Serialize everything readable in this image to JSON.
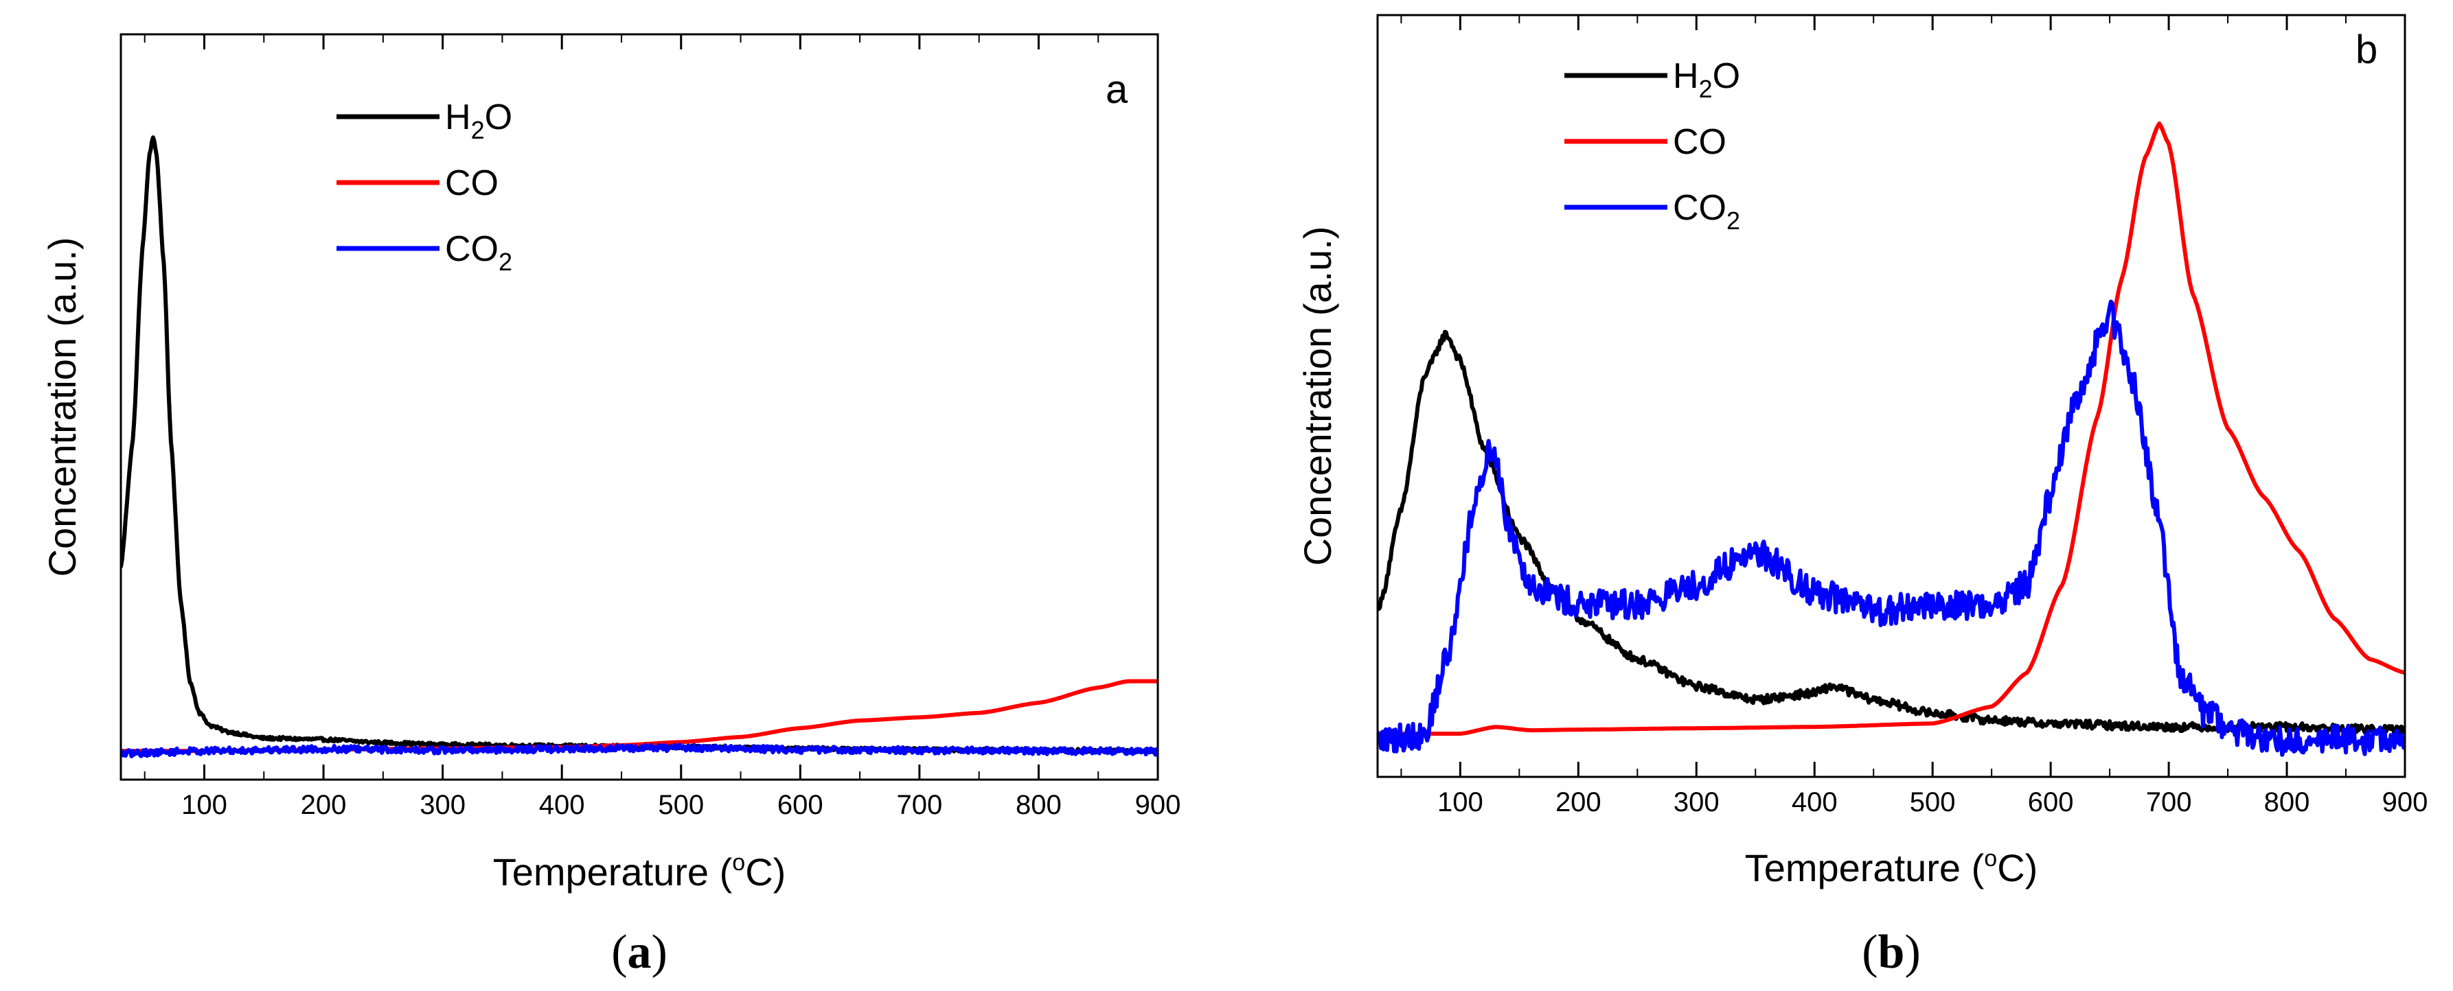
{
  "chart_data": [
    {
      "panel": "a",
      "type": "line",
      "caption_open": "(",
      "caption_letter": "a",
      "caption_close": ")",
      "xlabel_prefix": "Temperature (",
      "xlabel_degree": "o",
      "xlabel_suffix": "C)",
      "ylabel": "Concentration (a.u.)",
      "xlim": [
        30,
        900
      ],
      "ylim": [
        0,
        100
      ],
      "xticks": [
        100,
        200,
        300,
        400,
        500,
        600,
        700,
        800,
        900
      ],
      "xtick_labels": [
        "100",
        "200",
        "300",
        "400",
        "500",
        "600",
        "700",
        "800",
        "900"
      ],
      "legend": [
        {
          "base": "H",
          "sub": "2",
          "tail": "O",
          "color": "#000000"
        },
        {
          "base": "CO",
          "sub": "",
          "tail": "",
          "color": "#ff0000"
        },
        {
          "base": "CO",
          "sub": "2",
          "tail": "",
          "color": "#0000ff"
        }
      ],
      "series": [
        {
          "name": "H2O",
          "color": "#000000",
          "noise": 0.25,
          "x": [
            30,
            40,
            48,
            54,
            57,
            60,
            66,
            72,
            80,
            88,
            96,
            105,
            120,
            150,
            200,
            250,
            300,
            400,
            500,
            600,
            700,
            800,
            900
          ],
          "y": [
            30,
            50,
            80,
            95,
            98,
            95,
            78,
            50,
            25,
            12,
            7,
            5,
            4,
            3,
            2.8,
            2.3,
            2,
            1.8,
            1.6,
            1.4,
            1.2,
            1.1,
            1
          ]
        },
        {
          "name": "CO",
          "color": "#ff0000",
          "noise": 0,
          "x": [
            30,
            100,
            200,
            300,
            400,
            450,
            500,
            550,
            600,
            650,
            700,
            750,
            800,
            850,
            875,
            900
          ],
          "y": [
            1,
            1,
            1.2,
            1.4,
            1.6,
            1.9,
            2.4,
            3.2,
            4.6,
            5.8,
            6.3,
            7,
            8.6,
            11,
            12,
            12
          ]
        },
        {
          "name": "CO2",
          "color": "#0000ff",
          "noise": 0.5,
          "x": [
            30,
            100,
            200,
            300,
            400,
            500,
            600,
            700,
            800,
            900
          ],
          "y": [
            0.6,
            1,
            1.3,
            1.1,
            1.3,
            1.5,
            1.2,
            1.1,
            1,
            0.9
          ]
        }
      ]
    },
    {
      "panel": "b",
      "type": "line",
      "caption_open": "(",
      "caption_letter": "b",
      "caption_close": ")",
      "xlabel_prefix": "Temperature (",
      "xlabel_degree": "o",
      "xlabel_suffix": "C)",
      "ylabel": "Concentration (a.u.)",
      "xlim": [
        30,
        900
      ],
      "ylim": [
        0,
        100
      ],
      "xticks": [
        100,
        200,
        300,
        400,
        500,
        600,
        700,
        800,
        900
      ],
      "xtick_labels": [
        "100",
        "200",
        "300",
        "400",
        "500",
        "600",
        "700",
        "800",
        "900"
      ],
      "legend": [
        {
          "base": "H",
          "sub": "2",
          "tail": "O",
          "color": "#000000"
        },
        {
          "base": "CO",
          "sub": "",
          "tail": "",
          "color": "#ff0000"
        },
        {
          "base": "CO",
          "sub": "2",
          "tail": "",
          "color": "#0000ff"
        }
      ],
      "series": [
        {
          "name": "H2O",
          "color": "#000000",
          "noise": 0.6,
          "x": [
            32,
            50,
            70,
            88,
            100,
            120,
            150,
            180,
            200,
            250,
            300,
            350,
            400,
            415,
            450,
            500,
            550,
            600,
            700,
            800,
            900
          ],
          "y": [
            22,
            36,
            56,
            62,
            58,
            45,
            32,
            24,
            20,
            14,
            10,
            8,
            9,
            10,
            8,
            6,
            5,
            4.5,
            4,
            4,
            3.5
          ]
        },
        {
          "name": "CO",
          "color": "#ff0000",
          "noise": 0,
          "x": [
            30,
            60,
            100,
            130,
            160,
            200,
            300,
            400,
            500,
            550,
            580,
            610,
            640,
            660,
            680,
            692,
            700,
            720,
            750,
            780,
            810,
            840,
            870,
            900
          ],
          "y": [
            3,
            3,
            3,
            4,
            3.5,
            3.6,
            3.8,
            4,
            4.5,
            7,
            12,
            25,
            50,
            70,
            88,
            93,
            90,
            68,
            48,
            38,
            30,
            20,
            14,
            12
          ]
        },
        {
          "name": "CO2",
          "color": "#0000ff",
          "noise": 2.2,
          "x": [
            30,
            70,
            90,
            110,
            125,
            130,
            140,
            160,
            200,
            250,
            300,
            350,
            400,
            450,
            500,
            550,
            580,
            600,
            620,
            650,
            670,
            690,
            710,
            730,
            760,
            800,
            900
          ],
          "y": [
            2,
            3,
            15,
            35,
            45,
            44,
            34,
            25,
            22,
            22,
            25,
            30,
            24,
            21,
            22,
            22,
            25,
            38,
            52,
            65,
            55,
            36,
            12,
            6,
            3,
            2,
            2
          ]
        }
      ]
    }
  ]
}
